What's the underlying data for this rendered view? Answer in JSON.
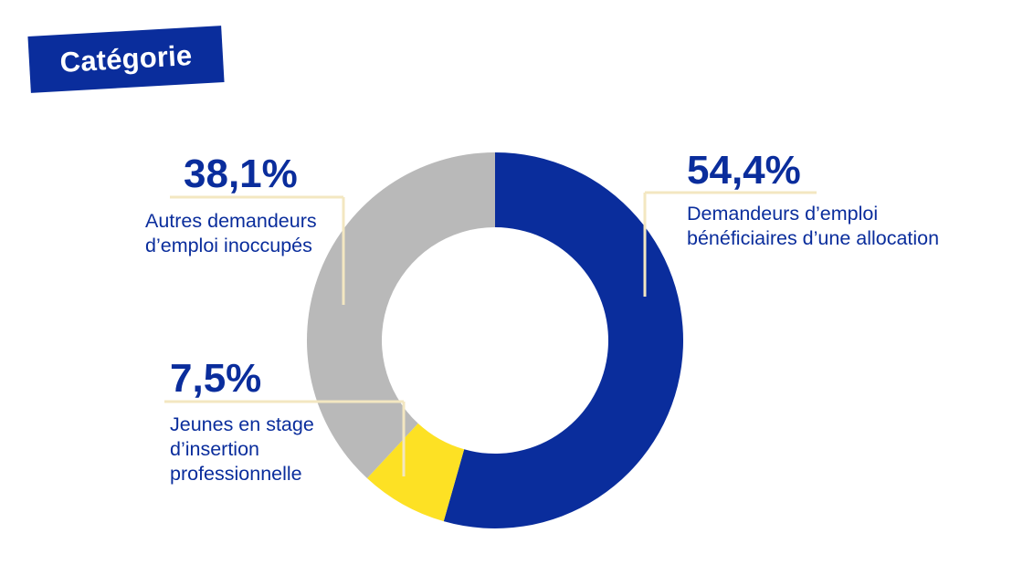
{
  "badge": {
    "title": "Catégorie"
  },
  "colors": {
    "accent": "#0a2d9c",
    "text": "#0a2d9c",
    "leader": "#f3e7c1",
    "slice_blue": "#0a2d9c",
    "slice_grey": "#b9b9b9",
    "slice_yellow": "#fde124"
  },
  "chart_data": {
    "type": "pie",
    "variant": "donut",
    "title": "Catégorie",
    "slices": [
      {
        "label_lines": [
          "Demandeurs d’emploi",
          "bénéficiaires d’une allocation"
        ],
        "value": 54.4,
        "value_text": "54,4%",
        "color": "#0a2d9c"
      },
      {
        "label_lines": [
          "Jeunes en stage",
          "d’insertion",
          "professionnelle"
        ],
        "value": 7.5,
        "value_text": "7,5%",
        "color": "#fde124"
      },
      {
        "label_lines": [
          "Autres demandeurs",
          "d’emploi inoccupés"
        ],
        "value": 38.1,
        "value_text": "38,1%",
        "color": "#b9b9b9"
      }
    ],
    "legend": "none",
    "labels_placement": "callouts"
  }
}
